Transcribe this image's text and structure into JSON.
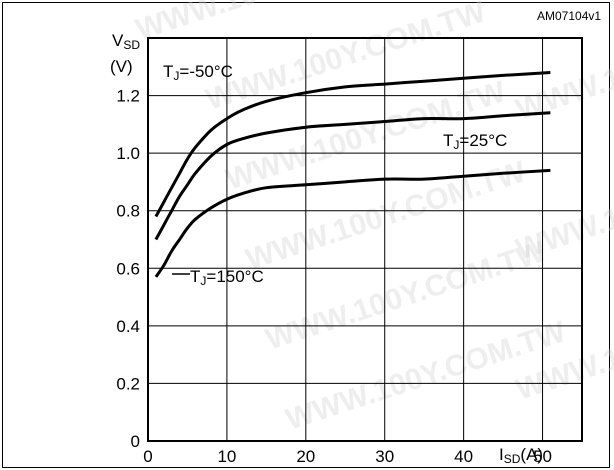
{
  "figure_code": "AM07104v1",
  "watermark": "WWW.100Y.COM.TW",
  "chart_data": {
    "type": "line",
    "x": [
      1,
      2,
      3,
      4,
      5,
      6,
      8,
      10,
      12,
      15,
      20,
      25,
      30,
      35,
      40,
      45,
      51
    ],
    "xlim": [
      0,
      55
    ],
    "ylim": [
      0,
      1.4
    ],
    "xticks": [
      0,
      10,
      20,
      30,
      40,
      50
    ],
    "yticks": [
      0,
      0.2,
      0.4,
      0.6,
      0.8,
      1.0,
      1.2
    ],
    "xtick_labels": [
      "0",
      "10",
      "20",
      "30",
      "40",
      "50"
    ],
    "ytick_labels": [
      "0",
      "0.2",
      "0.4",
      "0.6",
      "0.8",
      "1.0",
      "1.2"
    ],
    "grid": true,
    "xlabel": {
      "main": "I",
      "sub": "SD",
      "unit": "(A)"
    },
    "ylabel": {
      "main": "V",
      "sub": "SD",
      "unit": "(V)"
    },
    "series": [
      {
        "name": "TJ=-50°C",
        "label": {
          "main": "T",
          "sub": "J",
          "rest": "=-50°C"
        },
        "values": [
          0.78,
          0.83,
          0.88,
          0.93,
          0.98,
          1.02,
          1.08,
          1.12,
          1.15,
          1.18,
          1.21,
          1.23,
          1.24,
          1.25,
          1.26,
          1.27,
          1.28
        ]
      },
      {
        "name": "TJ=25°C",
        "label": {
          "main": "T",
          "sub": "J",
          "rest": "=25°C"
        },
        "values": [
          0.7,
          0.75,
          0.8,
          0.85,
          0.89,
          0.93,
          0.99,
          1.03,
          1.05,
          1.07,
          1.09,
          1.1,
          1.11,
          1.12,
          1.12,
          1.13,
          1.14
        ]
      },
      {
        "name": "TJ=150°C",
        "label": {
          "main": "T",
          "sub": "J",
          "rest": "=150°C"
        },
        "values": [
          0.57,
          0.61,
          0.66,
          0.7,
          0.74,
          0.77,
          0.81,
          0.84,
          0.86,
          0.88,
          0.89,
          0.9,
          0.91,
          0.91,
          0.92,
          0.93,
          0.94
        ]
      }
    ]
  }
}
